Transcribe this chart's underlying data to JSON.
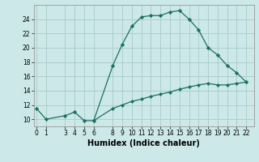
{
  "xlabel": "Humidex (Indice chaleur)",
  "background_color": "#cce8e8",
  "line_color": "#1a7060",
  "grid_color": "#aacaca",
  "x_upper": [
    0,
    1,
    3,
    4,
    5,
    6,
    8,
    9,
    10,
    11,
    12,
    13,
    14,
    15,
    16,
    17,
    18,
    19,
    20,
    21,
    22
  ],
  "y_upper": [
    11.5,
    10.0,
    10.5,
    11.0,
    9.8,
    9.8,
    17.5,
    20.5,
    23.0,
    24.3,
    24.5,
    24.5,
    25.0,
    25.2,
    24.0,
    22.5,
    20.0,
    19.0,
    17.5,
    16.5,
    15.2
  ],
  "x_lower": [
    6,
    8,
    9,
    10,
    11,
    12,
    13,
    14,
    15,
    16,
    17,
    18,
    19,
    20,
    21,
    22
  ],
  "y_lower": [
    9.8,
    11.5,
    12.0,
    12.5,
    12.8,
    13.2,
    13.5,
    13.8,
    14.2,
    14.5,
    14.8,
    15.0,
    14.8,
    14.8,
    15.0,
    15.2
  ],
  "ylim": [
    9.0,
    26.0
  ],
  "xlim": [
    -0.3,
    22.8
  ],
  "yticks": [
    10,
    12,
    14,
    16,
    18,
    20,
    22,
    24
  ],
  "xticks": [
    0,
    1,
    3,
    4,
    5,
    6,
    8,
    9,
    10,
    11,
    12,
    13,
    14,
    15,
    16,
    17,
    18,
    19,
    20,
    21,
    22
  ],
  "tick_fontsize": 5.5,
  "xlabel_fontsize": 7.0
}
